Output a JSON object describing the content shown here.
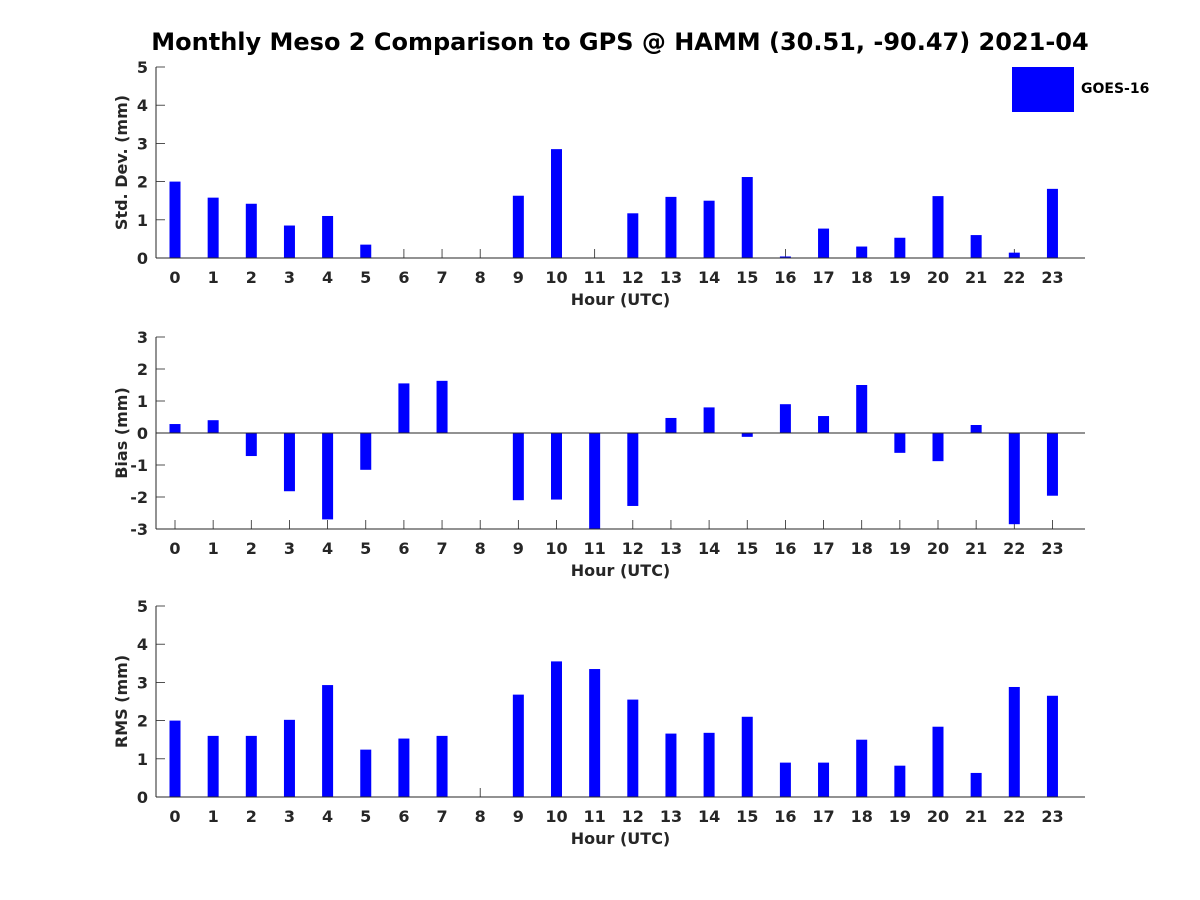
{
  "figure": {
    "title": "Monthly Meso 2 Comparison to GPS @ HAMM (30.51, -90.47) 2021-04",
    "legend": {
      "label": "GOES-16",
      "color": "#0000ff"
    }
  },
  "chart_data": [
    {
      "type": "bar",
      "title": "",
      "xlabel": "Hour (UTC)",
      "ylabel": "Std. Dev. (mm)",
      "ylim": [
        0,
        5
      ],
      "yticks": [
        0,
        1,
        2,
        3,
        4,
        5
      ],
      "categories": [
        "0",
        "1",
        "2",
        "3",
        "4",
        "5",
        "6",
        "7",
        "8",
        "9",
        "10",
        "11",
        "12",
        "13",
        "14",
        "15",
        "16",
        "17",
        "18",
        "19",
        "20",
        "21",
        "22",
        "23"
      ],
      "series": [
        {
          "name": "GOES-16",
          "color": "#0000ff",
          "values": [
            2.0,
            1.58,
            1.42,
            0.85,
            1.1,
            0.35,
            0,
            0,
            0,
            1.63,
            2.85,
            0,
            1.17,
            1.6,
            1.5,
            2.12,
            0.04,
            0.77,
            0.3,
            0.53,
            1.62,
            0.6,
            0.14,
            1.81
          ]
        }
      ],
      "legend": "top-right"
    },
    {
      "type": "bar",
      "title": "",
      "xlabel": "Hour (UTC)",
      "ylabel": "Bias (mm)",
      "ylim": [
        -3,
        3
      ],
      "yticks": [
        -3,
        -2,
        -1,
        0,
        1,
        2,
        3
      ],
      "categories": [
        "0",
        "1",
        "2",
        "3",
        "4",
        "5",
        "6",
        "7",
        "8",
        "9",
        "10",
        "11",
        "12",
        "13",
        "14",
        "15",
        "16",
        "17",
        "18",
        "19",
        "20",
        "21",
        "22",
        "23"
      ],
      "series": [
        {
          "name": "GOES-16",
          "color": "#0000ff",
          "values": [
            0.28,
            0.4,
            -0.72,
            -1.82,
            -2.7,
            -1.15,
            1.55,
            1.63,
            0,
            -2.1,
            -2.08,
            -3.0,
            -2.28,
            0.47,
            0.8,
            -0.12,
            0.9,
            0.53,
            1.5,
            -0.62,
            -0.88,
            0.25,
            -2.85,
            -1.96
          ]
        }
      ]
    },
    {
      "type": "bar",
      "title": "",
      "xlabel": "Hour (UTC)",
      "ylabel": "RMS (mm)",
      "ylim": [
        0,
        5
      ],
      "yticks": [
        0,
        1,
        2,
        3,
        4,
        5
      ],
      "categories": [
        "0",
        "1",
        "2",
        "3",
        "4",
        "5",
        "6",
        "7",
        "8",
        "9",
        "10",
        "11",
        "12",
        "13",
        "14",
        "15",
        "16",
        "17",
        "18",
        "19",
        "20",
        "21",
        "22",
        "23"
      ],
      "series": [
        {
          "name": "GOES-16",
          "color": "#0000ff",
          "values": [
            2.0,
            1.6,
            1.6,
            2.02,
            2.93,
            1.24,
            1.53,
            1.6,
            0,
            2.68,
            3.55,
            3.35,
            2.55,
            1.66,
            1.68,
            2.1,
            0.9,
            0.9,
            1.5,
            0.82,
            1.84,
            0.63,
            2.88,
            2.65
          ]
        }
      ]
    }
  ]
}
